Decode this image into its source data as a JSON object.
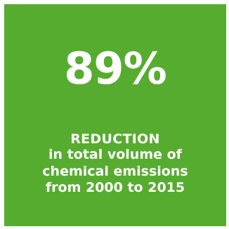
{
  "tile": {
    "background_color": "#56ac2f",
    "text_color": "#ffffff",
    "stat_value": "89%",
    "heading": "REDUCTION",
    "description_lines": [
      "in total volume of",
      "chemical emissions",
      "from 2000 to 2015"
    ]
  }
}
